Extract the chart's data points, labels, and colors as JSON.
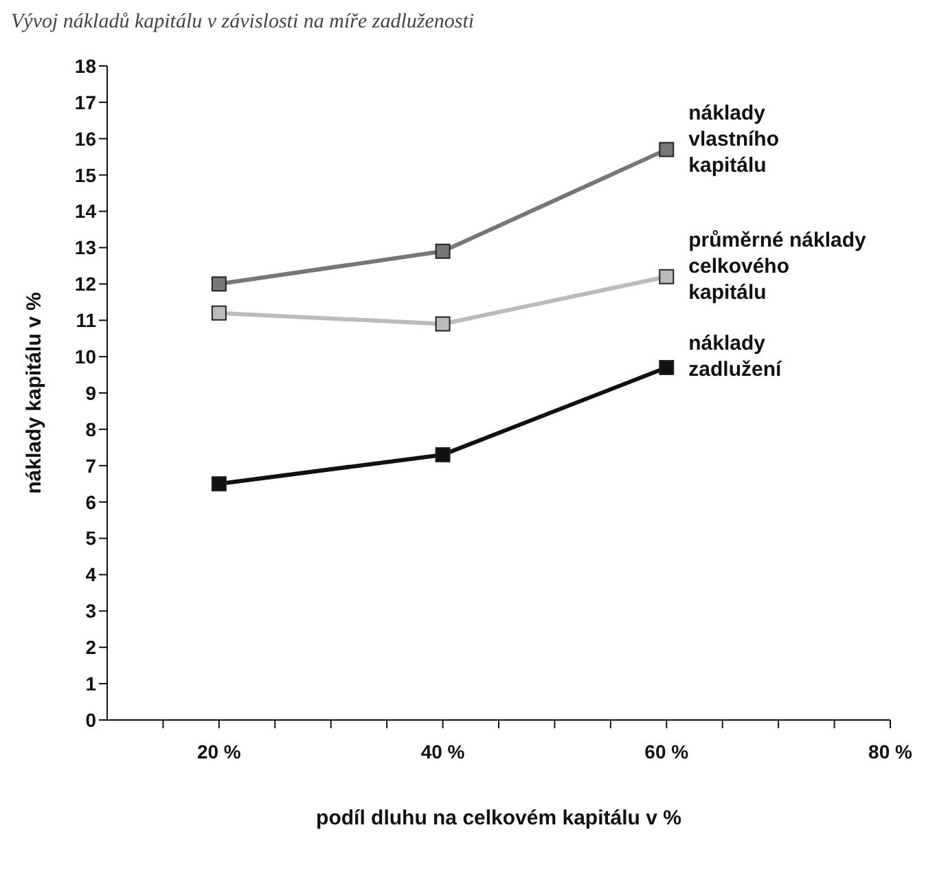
{
  "chart_data": {
    "type": "line",
    "title": "Vývoj nákladů kapitálu v závislosti na míře zadluženosti",
    "xlabel": "podíl dluhu na celkovém kapitálu v %",
    "ylabel": "náklady kapitálu v %",
    "x": [
      20,
      40,
      60
    ],
    "xlim": [
      10,
      80
    ],
    "xticks": [
      {
        "value": 15,
        "label": null
      },
      {
        "value": 20,
        "label": "20 %"
      },
      {
        "value": 25,
        "label": null
      },
      {
        "value": 30,
        "label": null
      },
      {
        "value": 35,
        "label": null
      },
      {
        "value": 40,
        "label": "40 %"
      },
      {
        "value": 45,
        "label": null
      },
      {
        "value": 50,
        "label": null
      },
      {
        "value": 55,
        "label": null
      },
      {
        "value": 60,
        "label": "60 %"
      },
      {
        "value": 65,
        "label": null
      },
      {
        "value": 70,
        "label": null
      },
      {
        "value": 75,
        "label": null
      },
      {
        "value": 80,
        "label": "80 %"
      }
    ],
    "ylim": [
      0,
      18
    ],
    "yticks": [
      0,
      1,
      2,
      3,
      4,
      5,
      6,
      7,
      8,
      9,
      10,
      11,
      12,
      13,
      14,
      15,
      16,
      17,
      18
    ],
    "grid": false,
    "legend": false,
    "marker": "square",
    "line_style": "solid",
    "series": [
      {
        "name": "náklady vlastního kapitálu",
        "color": "#777777",
        "values": [
          12.0,
          12.9,
          15.7
        ]
      },
      {
        "name": "průměrné náklady celkového kapitálu",
        "color": "#bbbbbb",
        "values": [
          11.2,
          10.9,
          12.2
        ]
      },
      {
        "name": "náklady zadlužení",
        "color": "#111111",
        "values": [
          6.5,
          7.3,
          9.7
        ]
      }
    ]
  }
}
